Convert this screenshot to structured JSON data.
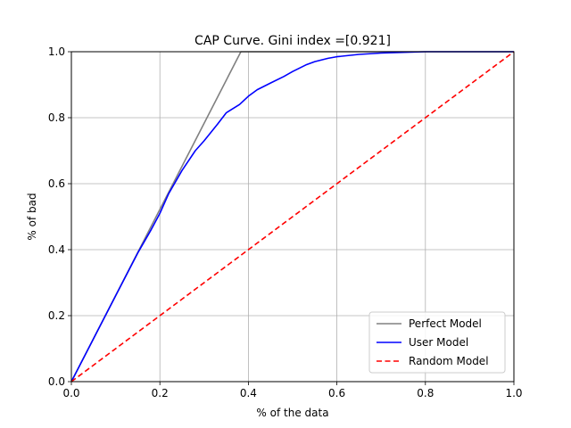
{
  "chart_data": {
    "type": "line",
    "title": "CAP Curve. Gini index =[0.921]",
    "xlabel": "% of the data",
    "ylabel": "% of bad",
    "xlim": [
      0.0,
      1.0
    ],
    "ylim": [
      0.0,
      1.0
    ],
    "xticks": [
      "0.0",
      "0.2",
      "0.4",
      "0.6",
      "0.8",
      "1.0"
    ],
    "yticks": [
      "0.0",
      "0.2",
      "0.4",
      "0.6",
      "0.8",
      "1.0"
    ],
    "grid": true,
    "legend_position": "lower-right",
    "series": [
      {
        "name": "Perfect Model",
        "color": "#808080",
        "dash": "solid",
        "x": [
          0.0,
          0.383,
          1.0
        ],
        "y": [
          0.0,
          1.0,
          1.0
        ]
      },
      {
        "name": "User Model",
        "color": "#0000ff",
        "dash": "solid",
        "x": [
          0.0,
          0.05,
          0.1,
          0.15,
          0.18,
          0.2,
          0.22,
          0.25,
          0.28,
          0.3,
          0.33,
          0.35,
          0.38,
          0.4,
          0.42,
          0.45,
          0.48,
          0.5,
          0.53,
          0.55,
          0.58,
          0.6,
          0.65,
          0.7,
          0.8,
          1.0
        ],
        "y": [
          0.0,
          0.13,
          0.26,
          0.39,
          0.46,
          0.51,
          0.57,
          0.64,
          0.7,
          0.73,
          0.78,
          0.815,
          0.84,
          0.865,
          0.885,
          0.905,
          0.925,
          0.94,
          0.96,
          0.97,
          0.98,
          0.985,
          0.992,
          0.996,
          1.0,
          1.0
        ]
      },
      {
        "name": "Random Model",
        "color": "#ff0000",
        "dash": "dashed",
        "x": [
          0.0,
          1.0
        ],
        "y": [
          0.0,
          1.0
        ]
      }
    ]
  }
}
